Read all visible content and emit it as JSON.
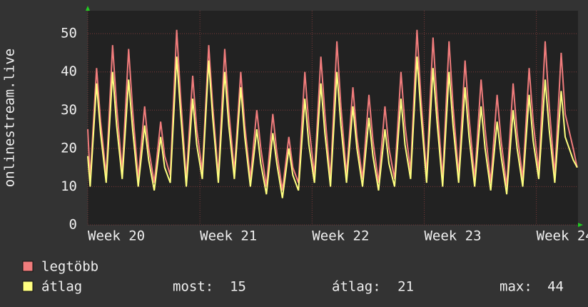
{
  "chart_data": {
    "type": "line",
    "ylabel": "onlinestream.live",
    "x": [
      0,
      0.15,
      0.55,
      0.8,
      1.15,
      1.55,
      1.8,
      2.15,
      2.55,
      2.8,
      3.15,
      3.55,
      3.8,
      4.15,
      4.55,
      4.8,
      5.15,
      5.55,
      5.8,
      6.15,
      6.55,
      6.8,
      7.15,
      7.55,
      7.8,
      8.15,
      8.55,
      8.8,
      9.15,
      9.55,
      9.8,
      10.15,
      10.55,
      10.8,
      11.15,
      11.55,
      11.8,
      12.15,
      12.55,
      12.8,
      13.15,
      13.55,
      13.8,
      14.15,
      14.55,
      14.8,
      15.15,
      15.55,
      15.8,
      16.15,
      16.55,
      16.8,
      17.15,
      17.55,
      17.8,
      18.15,
      18.55,
      18.8,
      19.15,
      19.55,
      19.8,
      20.15,
      20.55,
      20.8,
      21.15,
      21.55,
      21.8,
      22.15,
      22.55,
      22.8,
      23.15,
      23.55,
      23.8,
      24.15,
      24.55,
      24.8,
      25.15,
      25.55,
      25.8,
      26.15,
      26.55,
      26.8,
      27.15,
      27.55,
      27.8,
      28.15,
      28.55,
      28.8,
      29.15,
      29.55,
      29.8,
      30.3,
      30.55
    ],
    "series": [
      {
        "name": "legtöbb",
        "color": "#f07c7c",
        "values": [
          25,
          12,
          41,
          27,
          13,
          47,
          31,
          14,
          46,
          30,
          12,
          31,
          20,
          11,
          27,
          18,
          13,
          51,
          33,
          12,
          39,
          25,
          14,
          47,
          31,
          13,
          46,
          30,
          14,
          40,
          26,
          12,
          30,
          20,
          10,
          29,
          19,
          9,
          23,
          15,
          11,
          40,
          26,
          13,
          44,
          29,
          12,
          48,
          31,
          13,
          36,
          23,
          12,
          34,
          22,
          11,
          31,
          20,
          12,
          40,
          26,
          14,
          51,
          33,
          13,
          49,
          32,
          12,
          48,
          31,
          13,
          43,
          28,
          12,
          38,
          25,
          11,
          34,
          22,
          10,
          37,
          24,
          12,
          41,
          27,
          14,
          48,
          31,
          13,
          45,
          29,
          20,
          15
        ]
      },
      {
        "name": "átlag",
        "color": "#ffff80",
        "values": [
          18,
          10,
          37,
          24,
          11,
          40,
          26,
          12,
          38,
          25,
          10,
          26,
          17,
          9,
          23,
          15,
          11,
          44,
          29,
          10,
          33,
          21,
          12,
          43,
          28,
          11,
          40,
          26,
          12,
          36,
          23,
          10,
          25,
          16,
          8,
          24,
          16,
          7,
          20,
          13,
          9,
          33,
          21,
          11,
          37,
          24,
          10,
          40,
          26,
          11,
          31,
          20,
          10,
          28,
          18,
          9,
          25,
          16,
          10,
          33,
          21,
          12,
          44,
          29,
          11,
          41,
          27,
          10,
          40,
          26,
          11,
          36,
          23,
          10,
          31,
          20,
          9,
          27,
          18,
          8,
          30,
          20,
          10,
          34,
          22,
          12,
          38,
          25,
          11,
          35,
          23,
          17,
          15
        ]
      }
    ],
    "xlim": [
      0,
      30.6
    ],
    "xticks": [
      {
        "value": 0,
        "label": "Week 20"
      },
      {
        "value": 7,
        "label": "Week 21"
      },
      {
        "value": 14,
        "label": "Week 22"
      },
      {
        "value": 21,
        "label": "Week 23"
      },
      {
        "value": 28,
        "label": "Week 24"
      }
    ],
    "ylim": [
      0,
      56
    ],
    "yticks": [
      0,
      10,
      20,
      30,
      40,
      50
    ],
    "grid": true,
    "stats": [
      {
        "label": "most:",
        "value": 15
      },
      {
        "label": "átlag:",
        "value": 21
      },
      {
        "label": "max:",
        "value": 44
      }
    ]
  }
}
